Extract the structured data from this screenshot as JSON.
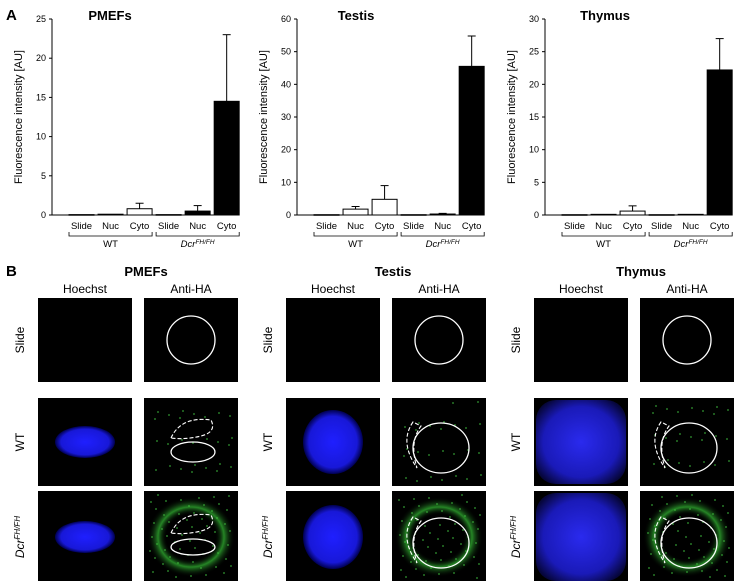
{
  "panel_a": {
    "label": "A"
  },
  "panel_b": {
    "label": "B"
  },
  "chart_data": [
    {
      "type": "bar",
      "title": "PMEFs",
      "ylabel": "Fluorescence intensity [AU]",
      "ylim": [
        0,
        25
      ],
      "yticks": [
        0,
        5,
        10,
        15,
        20,
        25
      ],
      "categories": [
        "Slide",
        "Nuc",
        "Cyto",
        "Slide",
        "Nuc",
        "Cyto"
      ],
      "groups": [
        "WT",
        "DcrFH/FH"
      ],
      "values": [
        0.05,
        0.1,
        0.8,
        0.05,
        0.5,
        14.5
      ],
      "errors": [
        0,
        0,
        0.7,
        0,
        0.7,
        8.5
      ],
      "fills": [
        "#ffffff",
        "#ffffff",
        "#ffffff",
        "#ffffff",
        "#000000",
        "#000000"
      ]
    },
    {
      "type": "bar",
      "title": "Testis",
      "ylabel": "Fluorescence intensity [AU]",
      "ylim": [
        0,
        60
      ],
      "yticks": [
        0,
        10,
        20,
        30,
        40,
        50,
        60
      ],
      "categories": [
        "Slide",
        "Nuc",
        "Cyto",
        "Slide",
        "Nuc",
        "Cyto"
      ],
      "groups": [
        "WT",
        "DcrFH/FH"
      ],
      "values": [
        0.1,
        1.8,
        4.8,
        0.1,
        0.3,
        45.5
      ],
      "errors": [
        0,
        0.8,
        4.2,
        0,
        0.2,
        9.3
      ],
      "fills": [
        "#ffffff",
        "#ffffff",
        "#ffffff",
        "#ffffff",
        "#000000",
        "#000000"
      ]
    },
    {
      "type": "bar",
      "title": "Thymus",
      "ylabel": "Fluorescence intensity [AU]",
      "ylim": [
        0,
        30
      ],
      "yticks": [
        0,
        5,
        10,
        15,
        20,
        25,
        30
      ],
      "categories": [
        "Slide",
        "Nuc",
        "Cyto",
        "Slide",
        "Nuc",
        "Cyto"
      ],
      "groups": [
        "WT",
        "DcrFH/FH"
      ],
      "values": [
        0.05,
        0.1,
        0.6,
        0.05,
        0.1,
        22.2
      ],
      "errors": [
        0,
        0,
        0.8,
        0,
        0,
        4.8
      ],
      "fills": [
        "#ffffff",
        "#ffffff",
        "#ffffff",
        "#ffffff",
        "#000000",
        "#000000"
      ]
    }
  ],
  "micrographs": {
    "columns": [
      "Hoechst",
      "Anti-HA"
    ],
    "rows": [
      "Slide",
      "WT",
      "Dcr"
    ],
    "row_superscript": "FH/FH",
    "tissues": [
      "PMEFs",
      "Testis",
      "Thymus"
    ]
  },
  "colors": {
    "hoechst": "#1a1aff",
    "antiha": "#22aa22",
    "background": "#000000"
  }
}
